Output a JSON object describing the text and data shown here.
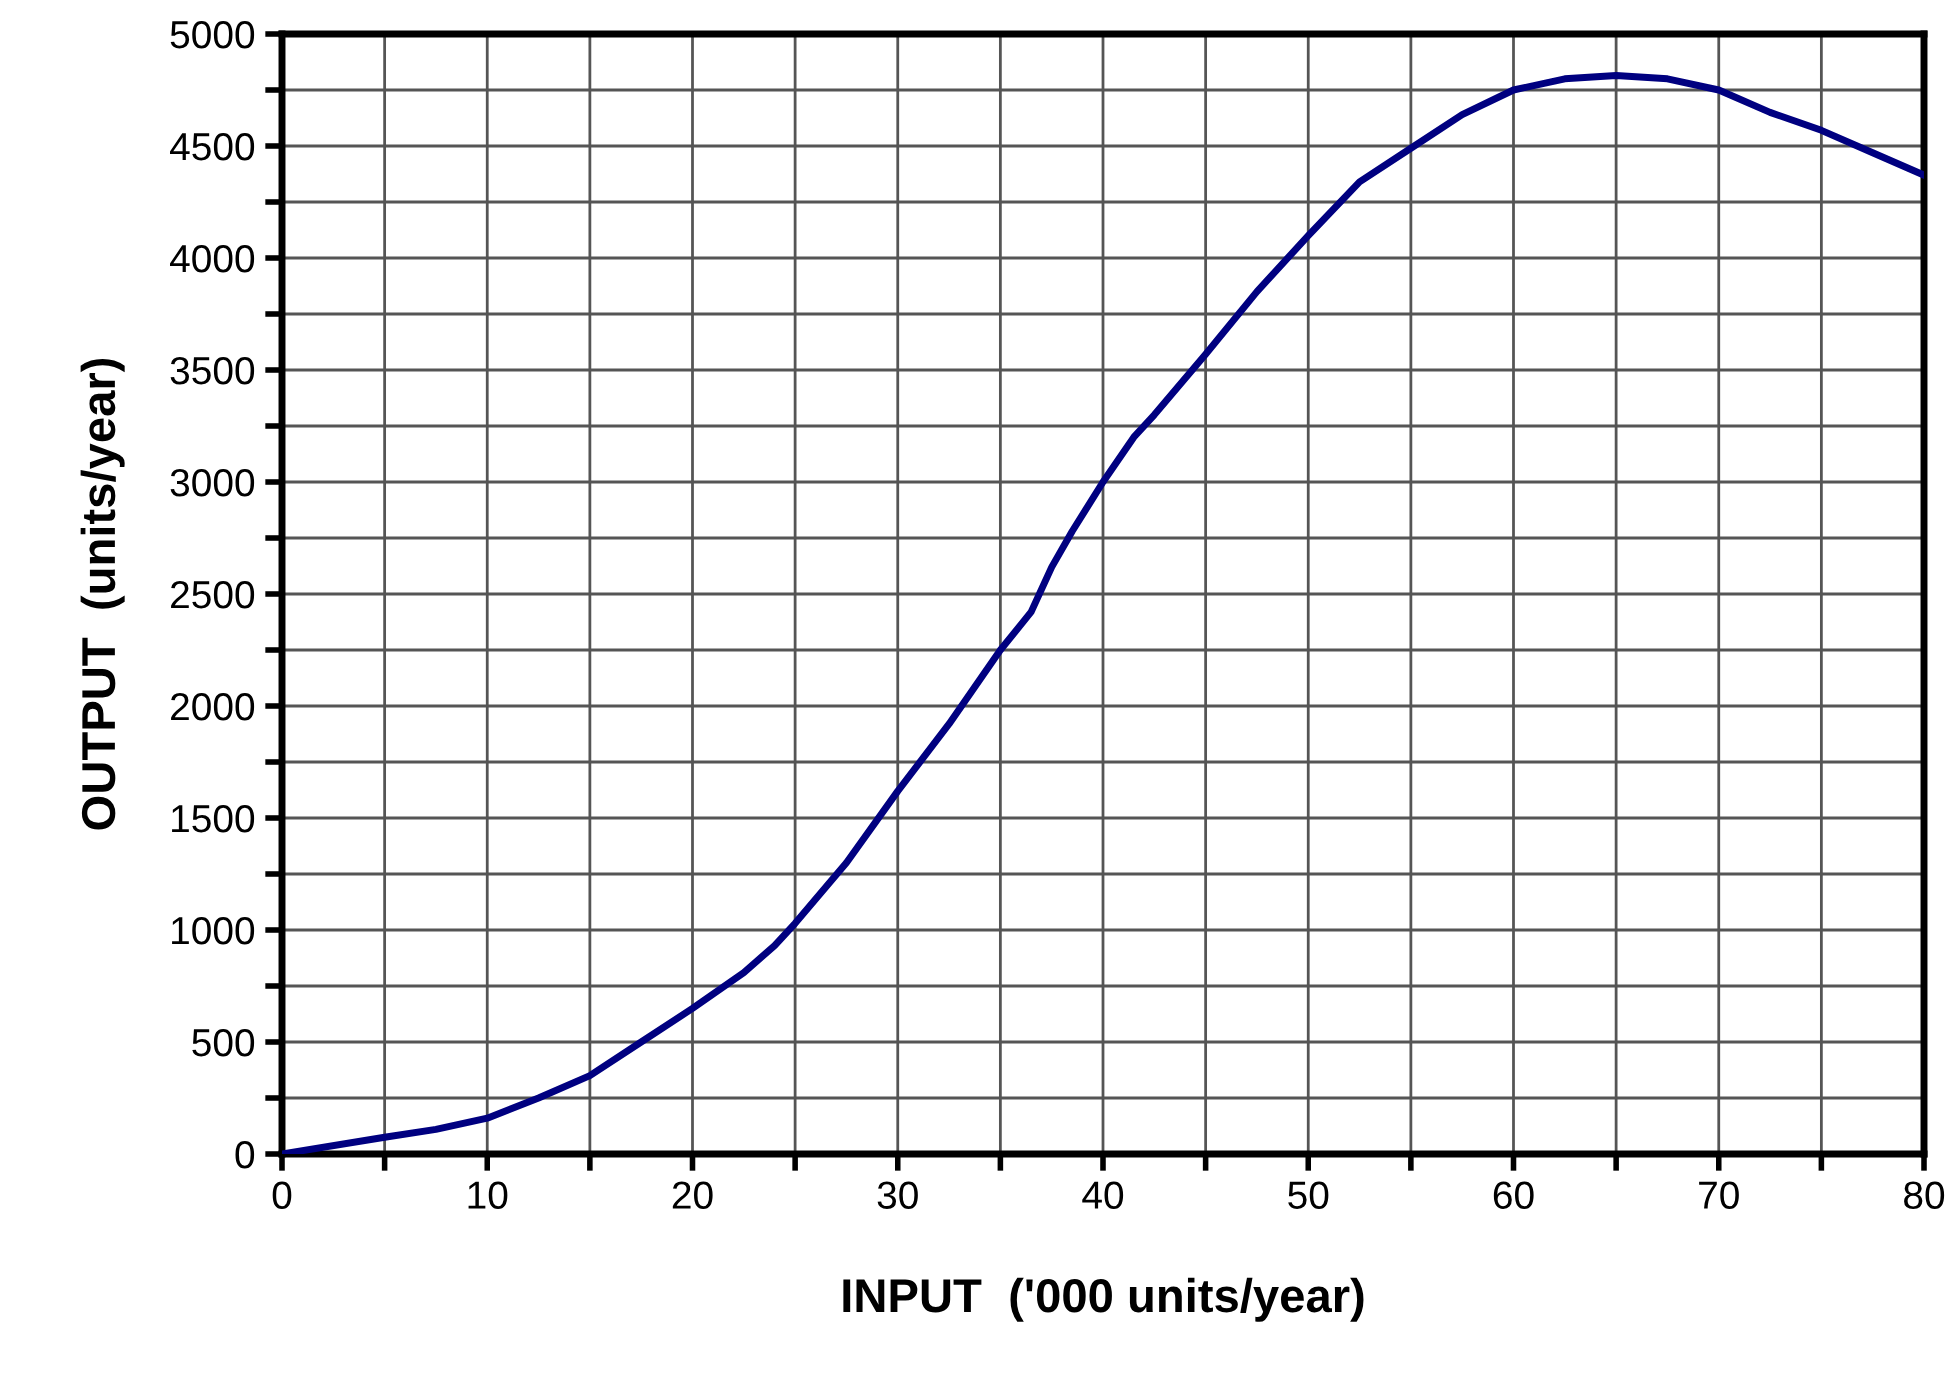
{
  "chart_data": {
    "type": "line",
    "xlabel": "INPUT  ('000 units/year)",
    "ylabel": "OUTPUT  (units/year)",
    "x": [
      0,
      5,
      7.5,
      10,
      12.5,
      15,
      17.5,
      20,
      22.5,
      24,
      25,
      27.5,
      30,
      32.5,
      35,
      36.5,
      37.5,
      38.5,
      40,
      41.5,
      42.5,
      45,
      47.5,
      50,
      52.5,
      55,
      57.5,
      60,
      62.5,
      65,
      67.5,
      70,
      72.5,
      75,
      77.5,
      80
    ],
    "series": [
      {
        "color": "#000080",
        "values": [
          0,
          75,
          110,
          160,
          250,
          350,
          500,
          650,
          810,
          930,
          1030,
          1300,
          1620,
          1920,
          2250,
          2420,
          2620,
          2780,
          3000,
          3200,
          3300,
          3570,
          3850,
          4100,
          4340,
          4490,
          4640,
          4750,
          4800,
          4815,
          4800,
          4750,
          4650,
          4570,
          4470,
          4370
        ]
      }
    ],
    "xlim": [
      0,
      80
    ],
    "ylim": [
      0,
      5000
    ],
    "xticks": [
      0,
      {
        "value": 5,
        "label": null
      },
      10,
      {
        "value": 15,
        "label": null
      },
      20,
      {
        "value": 25,
        "label": null
      },
      30,
      {
        "value": 35,
        "label": null
      },
      40,
      {
        "value": 45,
        "label": null
      },
      50,
      {
        "value": 55,
        "label": null
      },
      60,
      {
        "value": 65,
        "label": null
      },
      70,
      {
        "value": 75,
        "label": null
      },
      80
    ],
    "yticks": [
      0,
      {
        "value": 250,
        "label": null
      },
      500,
      {
        "value": 750,
        "label": null
      },
      1000,
      {
        "value": 1250,
        "label": null
      },
      1500,
      {
        "value": 1750,
        "label": null
      },
      2000,
      {
        "value": 2250,
        "label": null
      },
      2500,
      {
        "value": 2750,
        "label": null
      },
      3000,
      {
        "value": 3250,
        "label": null
      },
      3500,
      {
        "value": 3750,
        "label": null
      },
      4000,
      {
        "value": 4250,
        "label": null
      },
      4500,
      {
        "value": 4750,
        "label": null
      },
      5000
    ],
    "grid": true,
    "legend": false,
    "marker": "none",
    "line_style": "solid"
  }
}
